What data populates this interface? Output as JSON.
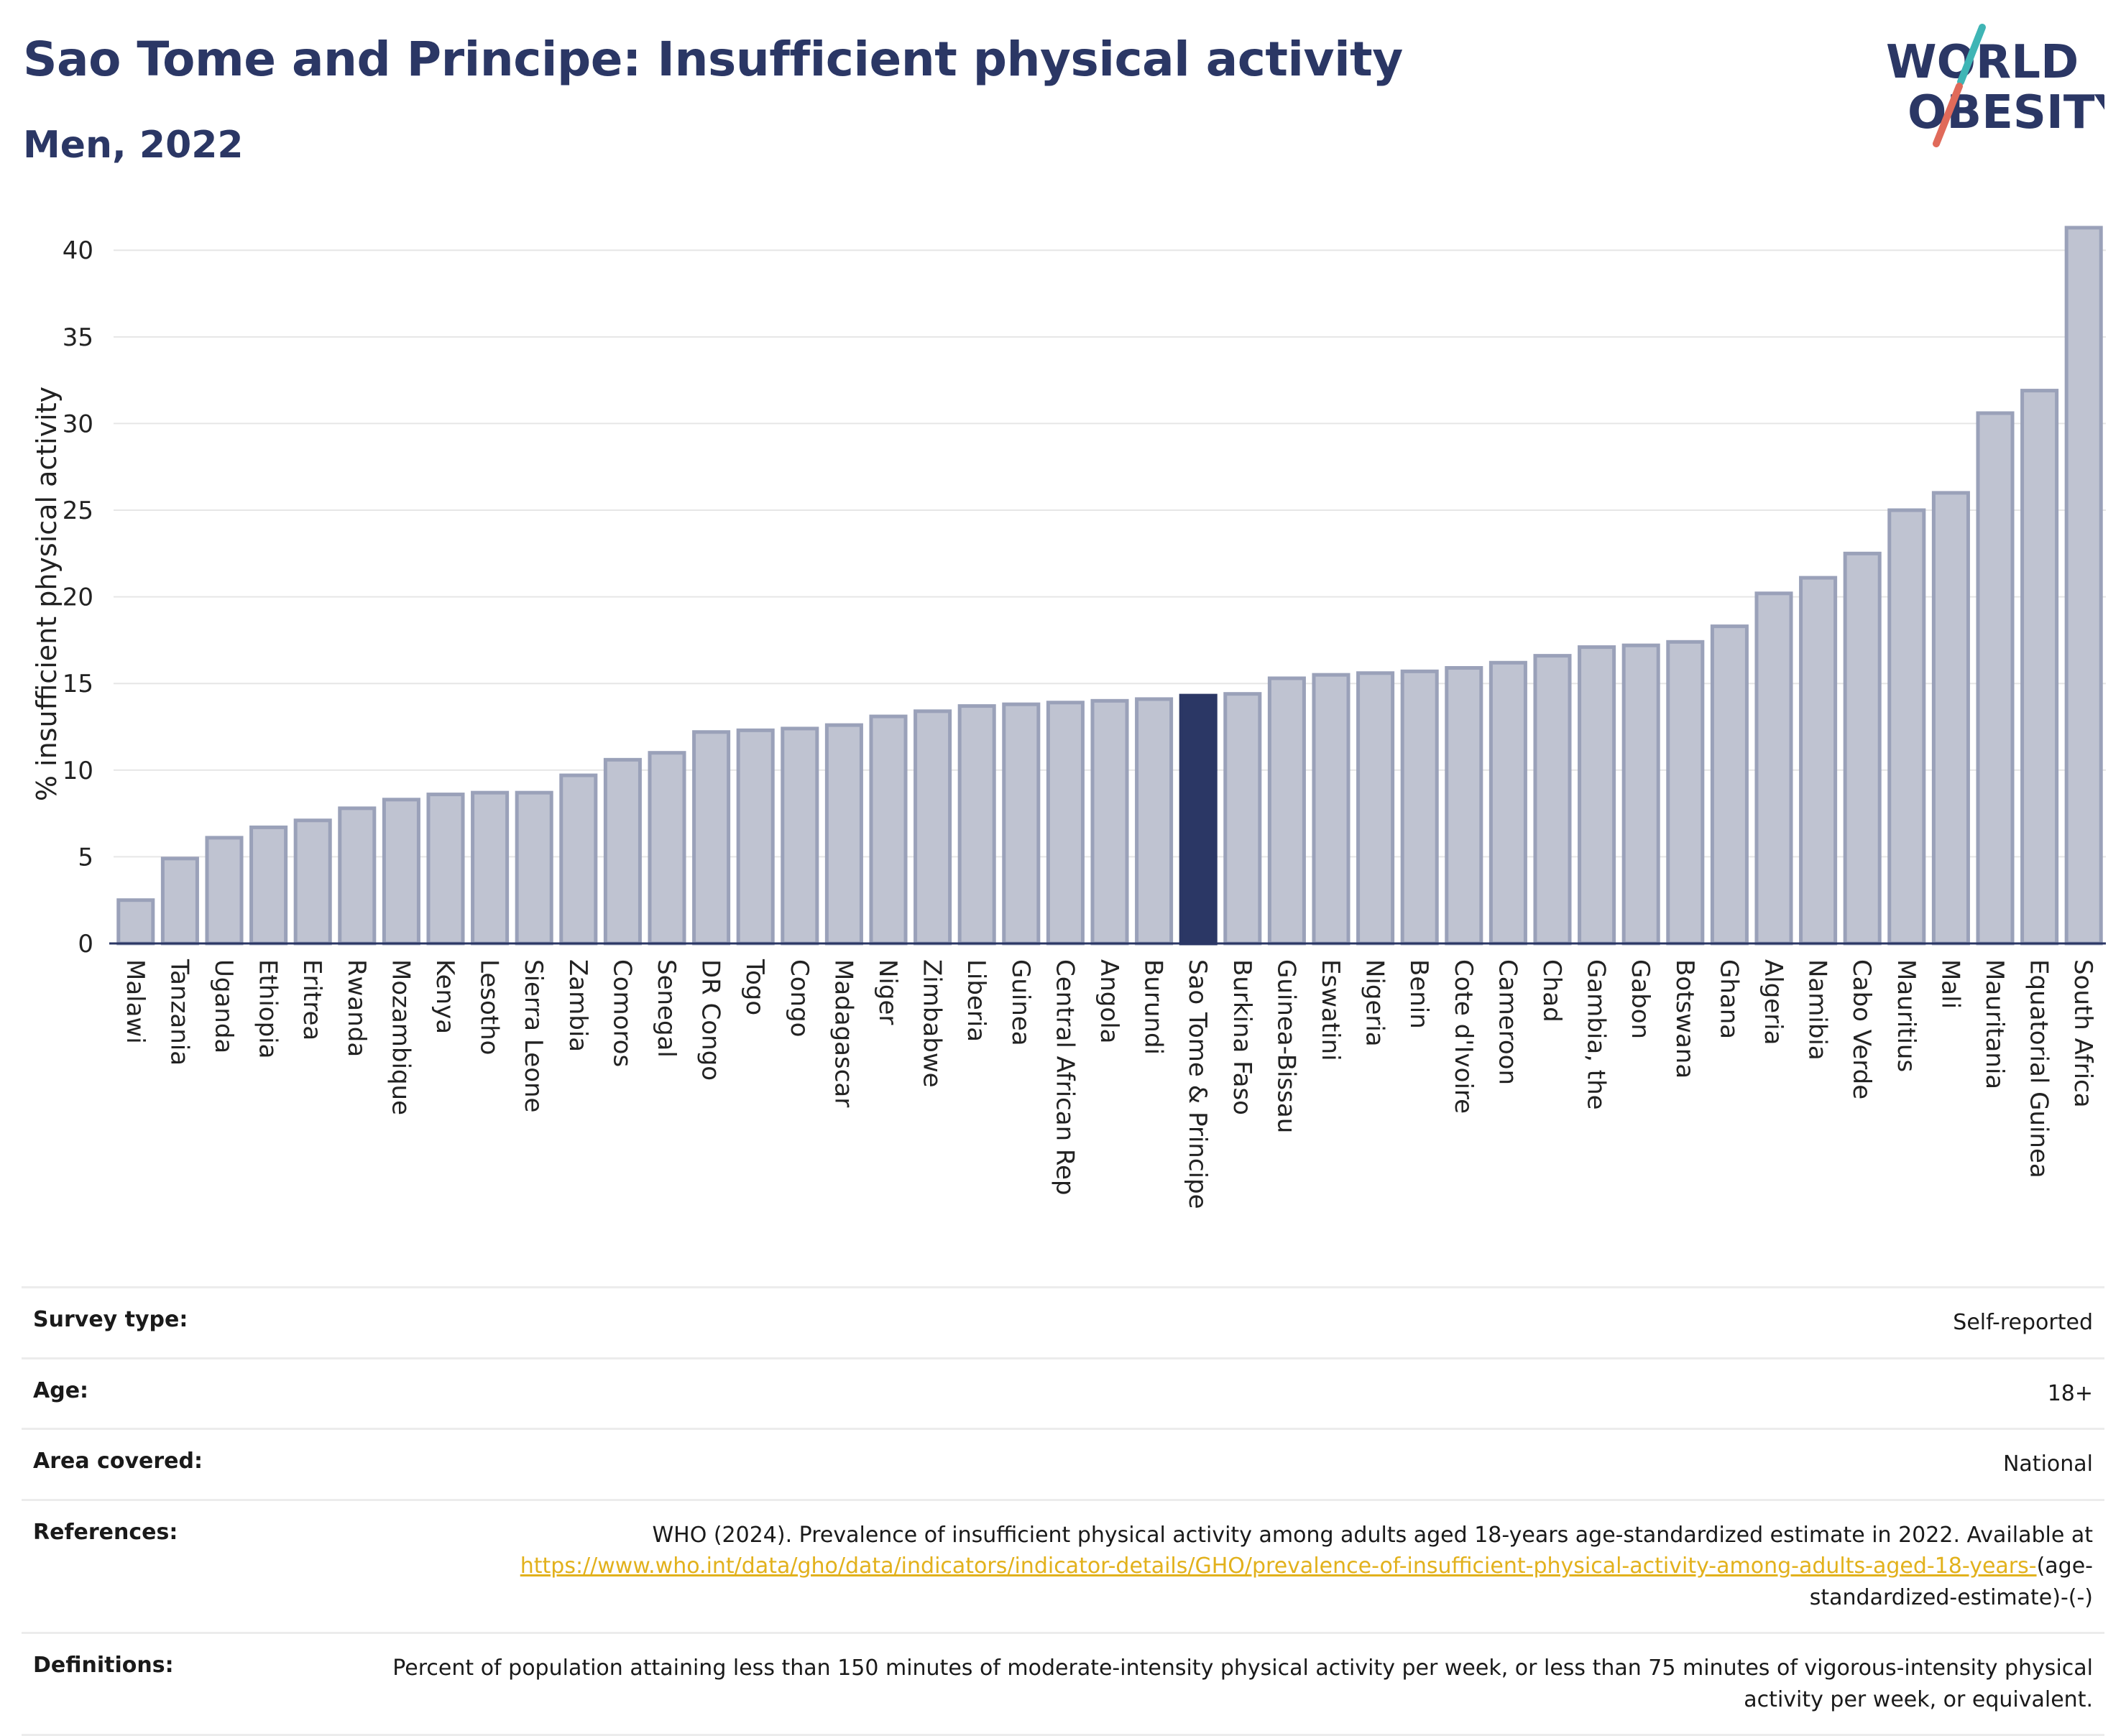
{
  "header": {
    "title": "Sao Tome and Principe: Insufficient physical activity",
    "subtitle": "Men, 2022",
    "logo_line1": "WORLD",
    "logo_line2": "OBESITY"
  },
  "colors": {
    "bar": "#bfc3d1",
    "bar_stroke": "#9aa1b9",
    "highlight": "#2b3765",
    "grid": "#e6e6e6",
    "accent_teal": "#3fb5b5",
    "accent_coral": "#e06a5a"
  },
  "chart_data": {
    "type": "bar",
    "ylabel": "% insufficient physical activity",
    "ylim": [
      0,
      42
    ],
    "yticks": [
      0,
      5,
      10,
      15,
      20,
      25,
      30,
      35,
      40
    ],
    "highlight": "Sao Tome & Principe",
    "categories": [
      "Malawi",
      "Tanzania",
      "Uganda",
      "Ethiopia",
      "Eritrea",
      "Rwanda",
      "Mozambique",
      "Kenya",
      "Lesotho",
      "Sierra Leone",
      "Zambia",
      "Comoros",
      "Senegal",
      "DR Congo",
      "Togo",
      "Congo",
      "Madagascar",
      "Niger",
      "Zimbabwe",
      "Liberia",
      "Guinea",
      "Central African Rep",
      "Angola",
      "Burundi",
      "Sao Tome & Principe",
      "Burkina Faso",
      "Guinea-Bissau",
      "Eswatini",
      "Nigeria",
      "Benin",
      "Cote d'Ivoire",
      "Cameroon",
      "Chad",
      "Gambia, the",
      "Gabon",
      "Botswana",
      "Ghana",
      "Algeria",
      "Namibia",
      "Cabo Verde",
      "Mauritius",
      "Mali",
      "Mauritania",
      "Equatorial Guinea",
      "South Africa"
    ],
    "values": [
      2.5,
      4.9,
      6.1,
      6.7,
      7.1,
      7.8,
      8.3,
      8.6,
      8.7,
      8.7,
      9.7,
      10.6,
      11.0,
      12.2,
      12.3,
      12.4,
      12.6,
      13.1,
      13.4,
      13.7,
      13.8,
      13.9,
      14.0,
      14.1,
      14.3,
      14.4,
      15.3,
      15.5,
      15.6,
      15.7,
      15.9,
      16.2,
      16.6,
      17.1,
      17.2,
      17.4,
      18.3,
      20.2,
      21.1,
      22.5,
      25.0,
      26.0,
      30.6,
      31.9,
      41.3
    ]
  },
  "meta": [
    {
      "label": "Survey type:",
      "value": "Self-reported"
    },
    {
      "label": "Age:",
      "value": "18+"
    },
    {
      "label": "Area covered:",
      "value": "National"
    },
    {
      "label": "References:",
      "value": "WHO (2024). Prevalence of insufficient physical activity among adults aged 18-years age-standardized estimate in 2022. Available at",
      "link": "https://www.who.int/data/gho/data/indicators/indicator-details/GHO/prevalence-of-insufficient-physical-activity-among-adults-aged-18-years-",
      "suffix": "(age-standardized-estimate)-(-)"
    },
    {
      "label": "Definitions:",
      "value": "Percent of population attaining less than 150 minutes of moderate-intensity physical activity per week, or less than 75 minutes of vigorous-intensity physical activity per week, or equivalent."
    }
  ]
}
